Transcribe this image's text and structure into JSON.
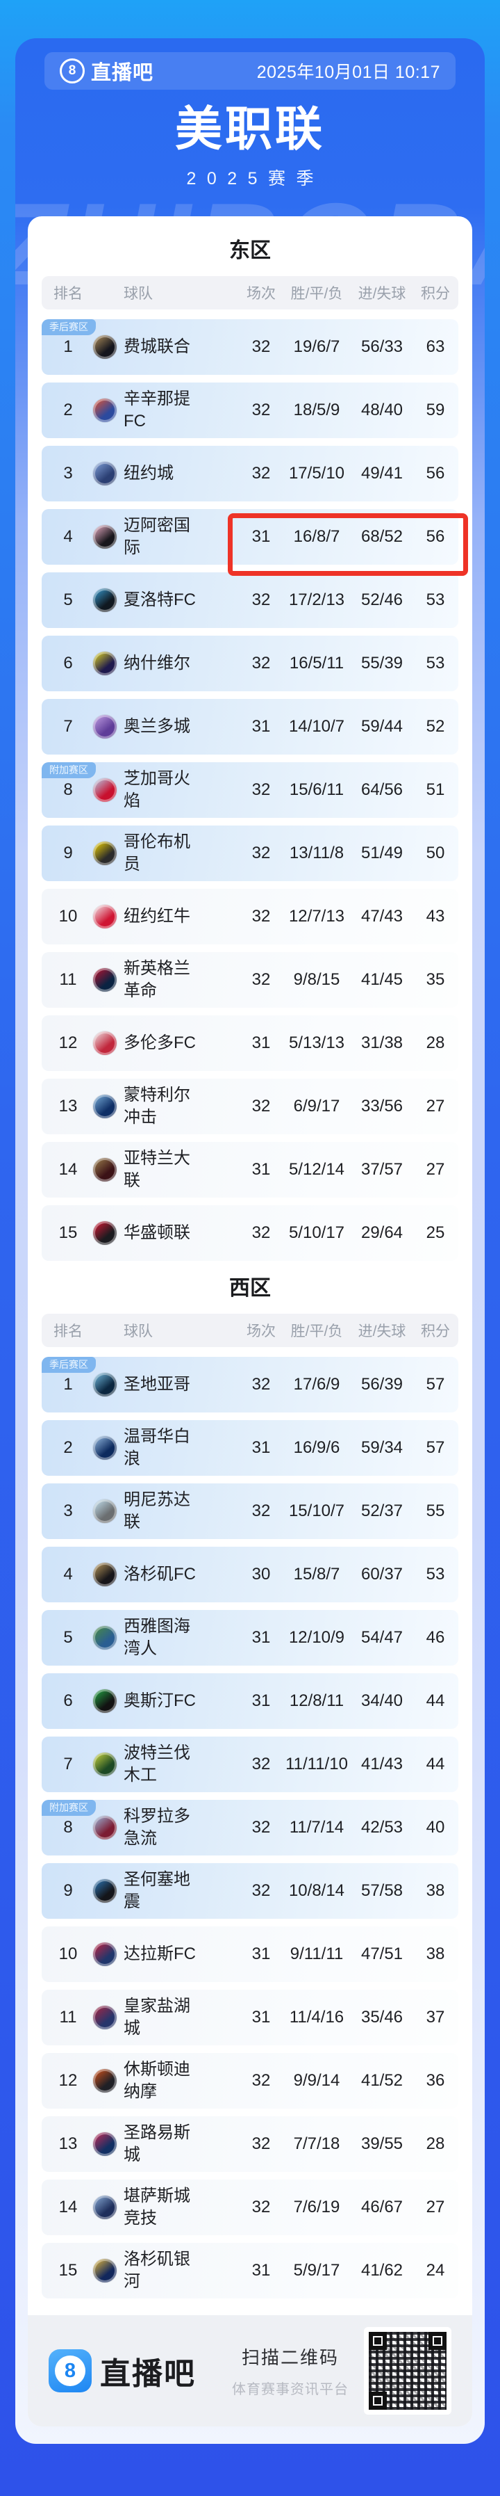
{
  "topbar": {
    "logo_badge": "8",
    "logo_text": "直播吧",
    "datetime": "2025年10月01日 10:17"
  },
  "title": "美职联",
  "season": "2025赛季",
  "watermark": "ZHIBOBA",
  "columns": [
    "排名",
    "球队",
    "场次",
    "胜/平/负",
    "进/失球",
    "积分"
  ],
  "badges": {
    "playoff": "季后赛区",
    "playin": "附加赛区"
  },
  "theme": {
    "highlight_color": "#ee3327",
    "badge_color": "#7fb6ef",
    "playoff_row_color": "#cfe3f9",
    "accent_blue": "#2e66ef"
  },
  "east": {
    "title": "东区",
    "rows": [
      {
        "rank": "1",
        "team": "费城联合",
        "played": "32",
        "wdl": "19/6/7",
        "goals": "56/33",
        "pts": "63",
        "zone": "in",
        "badge": "playoff",
        "logo": [
          "#b99760",
          "#14151d"
        ]
      },
      {
        "rank": "2",
        "team": "辛辛那提FC",
        "played": "32",
        "wdl": "18/5/9",
        "goals": "48/40",
        "pts": "59",
        "zone": "in",
        "logo": [
          "#f0542b",
          "#2b4a9e"
        ]
      },
      {
        "rank": "3",
        "team": "纽约城",
        "played": "32",
        "wdl": "17/5/10",
        "goals": "49/41",
        "pts": "56",
        "zone": "in",
        "logo": [
          "#86a7e0",
          "#2b3f73"
        ]
      },
      {
        "rank": "4",
        "team": "迈阿密国际",
        "played": "31",
        "wdl": "16/8/7",
        "goals": "68/52",
        "pts": "56",
        "zone": "in",
        "highlight": true,
        "logo": [
          "#f5b6cf",
          "#18171c"
        ]
      },
      {
        "rank": "5",
        "team": "夏洛特FC",
        "played": "32",
        "wdl": "17/2/13",
        "goals": "52/46",
        "pts": "53",
        "zone": "in",
        "logo": [
          "#3aa3dc",
          "#101820"
        ]
      },
      {
        "rank": "6",
        "team": "纳什维尔",
        "played": "32",
        "wdl": "16/5/11",
        "goals": "55/39",
        "pts": "53",
        "zone": "in",
        "logo": [
          "#efe51f",
          "#1f1a4d"
        ]
      },
      {
        "rank": "7",
        "team": "奥兰多城",
        "played": "31",
        "wdl": "14/10/7",
        "goals": "59/44",
        "pts": "52",
        "zone": "in",
        "logo": [
          "#c7a5e8",
          "#5f3d99"
        ]
      },
      {
        "rank": "8",
        "team": "芝加哥火焰",
        "played": "32",
        "wdl": "15/6/11",
        "goals": "64/56",
        "pts": "51",
        "zone": "in",
        "badge": "playin",
        "logo": [
          "#b3d9f5",
          "#c8102e"
        ]
      },
      {
        "rank": "9",
        "team": "哥伦布机员",
        "played": "32",
        "wdl": "13/11/8",
        "goals": "51/49",
        "pts": "50",
        "zone": "in",
        "logo": [
          "#ffe000",
          "#2b2b2b"
        ]
      },
      {
        "rank": "10",
        "team": "纽约红牛",
        "played": "32",
        "wdl": "12/7/13",
        "goals": "47/43",
        "pts": "43",
        "zone": "out",
        "logo": [
          "#f3f4f6",
          "#cf1533"
        ]
      },
      {
        "rank": "11",
        "team": "新英格兰革命",
        "played": "32",
        "wdl": "9/8/15",
        "goals": "41/45",
        "pts": "35",
        "zone": "out",
        "logo": [
          "#c8102e",
          "#0a2342"
        ]
      },
      {
        "rank": "12",
        "team": "多伦多FC",
        "played": "31",
        "wdl": "5/13/13",
        "goals": "31/38",
        "pts": "28",
        "zone": "out",
        "logo": [
          "#f0f0f0",
          "#c1273c"
        ]
      },
      {
        "rank": "13",
        "team": "蒙特利尔冲击",
        "played": "32",
        "wdl": "6/9/17",
        "goals": "33/56",
        "pts": "27",
        "zone": "out",
        "logo": [
          "#7fb5e0",
          "#0f2f66"
        ]
      },
      {
        "rank": "14",
        "team": "亚特兰大联",
        "played": "31",
        "wdl": "5/12/14",
        "goals": "37/57",
        "pts": "27",
        "zone": "out",
        "logo": [
          "#a38752",
          "#3b1216"
        ]
      },
      {
        "rank": "15",
        "team": "华盛顿联",
        "played": "32",
        "wdl": "5/10/17",
        "goals": "29/64",
        "pts": "25",
        "zone": "out",
        "logo": [
          "#e51937",
          "#1b1b1f"
        ]
      }
    ]
  },
  "west": {
    "title": "西区",
    "rows": [
      {
        "rank": "1",
        "team": "圣地亚哥",
        "played": "32",
        "wdl": "17/6/9",
        "goals": "56/39",
        "pts": "57",
        "zone": "in",
        "badge": "playoff",
        "logo": [
          "#79c3e8",
          "#0b2740"
        ]
      },
      {
        "rank": "2",
        "team": "温哥华白浪",
        "played": "31",
        "wdl": "16/9/6",
        "goals": "59/34",
        "pts": "57",
        "zone": "in",
        "logo": [
          "#9fc5ea",
          "#0c2a5e"
        ]
      },
      {
        "rank": "3",
        "team": "明尼苏达联",
        "played": "32",
        "wdl": "15/10/7",
        "goals": "52/37",
        "pts": "55",
        "zone": "in",
        "logo": [
          "#c9e8f8",
          "#6b6e70"
        ]
      },
      {
        "rank": "4",
        "team": "洛杉矶FC",
        "played": "30",
        "wdl": "15/8/7",
        "goals": "60/37",
        "pts": "53",
        "zone": "in",
        "logo": [
          "#c3a05f",
          "#17161a"
        ]
      },
      {
        "rank": "5",
        "team": "西雅图海湾人",
        "played": "31",
        "wdl": "12/10/9",
        "goals": "54/47",
        "pts": "46",
        "zone": "in",
        "logo": [
          "#4c8f3f",
          "#2a5e92"
        ]
      },
      {
        "rank": "6",
        "team": "奥斯汀FC",
        "played": "31",
        "wdl": "12/8/11",
        "goals": "34/40",
        "pts": "44",
        "zone": "in",
        "logo": [
          "#25b24a",
          "#121212"
        ]
      },
      {
        "rank": "7",
        "team": "波特兰伐木工",
        "played": "32",
        "wdl": "11/11/10",
        "goals": "41/43",
        "pts": "44",
        "zone": "in",
        "logo": [
          "#d8e03f",
          "#1d4a24"
        ]
      },
      {
        "rank": "8",
        "team": "科罗拉多急流",
        "played": "32",
        "wdl": "11/7/14",
        "goals": "42/53",
        "pts": "40",
        "zone": "in",
        "badge": "playin",
        "logo": [
          "#9cc3e8",
          "#7c1c33"
        ]
      },
      {
        "rank": "9",
        "team": "圣何塞地震",
        "played": "32",
        "wdl": "10/8/14",
        "goals": "57/58",
        "pts": "38",
        "zone": "in",
        "logo": [
          "#2f7fc4",
          "#14151a"
        ]
      },
      {
        "rank": "10",
        "team": "达拉斯FC",
        "played": "31",
        "wdl": "9/11/11",
        "goals": "47/51",
        "pts": "38",
        "zone": "out",
        "logo": [
          "#cf2340",
          "#20366b"
        ]
      },
      {
        "rank": "11",
        "team": "皇家盐湖城",
        "played": "31",
        "wdl": "11/4/16",
        "goals": "35/46",
        "pts": "37",
        "zone": "out",
        "logo": [
          "#b2243f",
          "#27356b"
        ]
      },
      {
        "rank": "12",
        "team": "休斯顿迪纳摩",
        "played": "32",
        "wdl": "9/9/14",
        "goals": "41/52",
        "pts": "36",
        "zone": "out",
        "logo": [
          "#e0551a",
          "#1f2026"
        ]
      },
      {
        "rank": "13",
        "team": "圣路易斯城",
        "played": "32",
        "wdl": "7/7/18",
        "goals": "39/55",
        "pts": "28",
        "zone": "out",
        "logo": [
          "#d42a56",
          "#123063"
        ]
      },
      {
        "rank": "14",
        "team": "堪萨斯城竞技",
        "played": "32",
        "wdl": "7/6/19",
        "goals": "46/67",
        "pts": "27",
        "zone": "out",
        "logo": [
          "#8fb3de",
          "#1f2f5c"
        ]
      },
      {
        "rank": "15",
        "team": "洛杉矶银河",
        "played": "31",
        "wdl": "5/9/17",
        "goals": "41/62",
        "pts": "24",
        "zone": "out",
        "logo": [
          "#f2c23a",
          "#12275c"
        ]
      }
    ]
  },
  "footer": {
    "logo_badge": "8",
    "logo_text": "直播吧",
    "scan_label": "扫描二维码",
    "platform_label": "体育赛事资讯平台"
  }
}
